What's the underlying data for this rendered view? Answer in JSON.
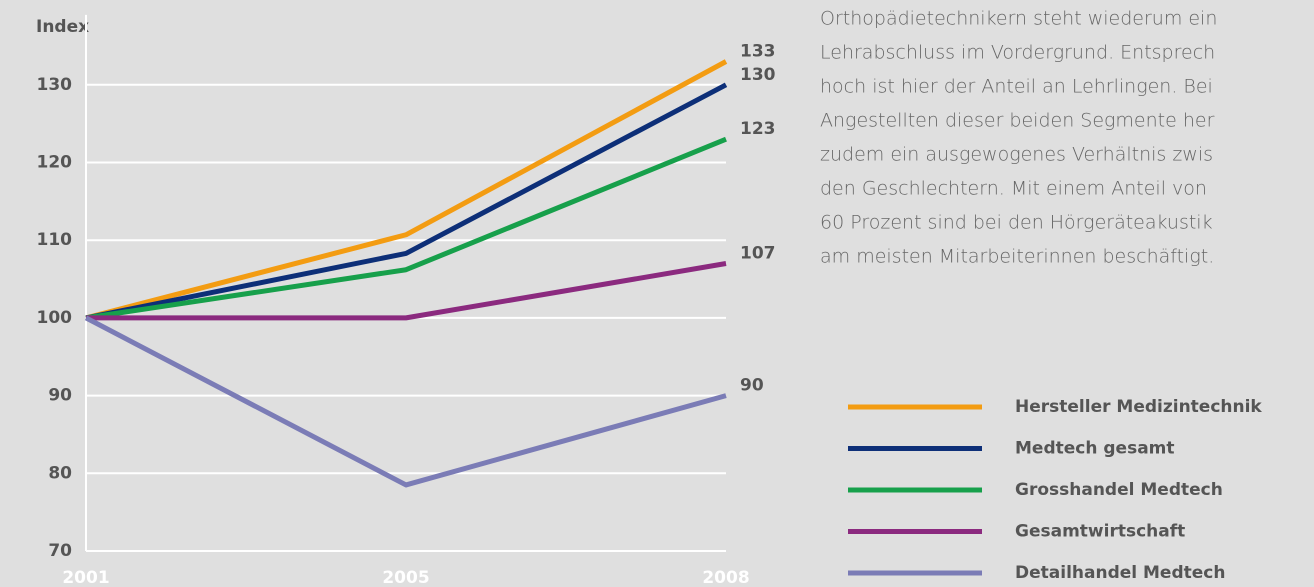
{
  "chart_data": {
    "type": "line",
    "ylabel": "Index",
    "categories": [
      "2001",
      "2005",
      "2008"
    ],
    "series": [
      {
        "name": "Hersteller Medizintechnik",
        "color": "#f39c12",
        "values": [
          100,
          110.7,
          133
        ]
      },
      {
        "name": "Medtech gesamt",
        "color": "#0d2f78",
        "values": [
          100,
          108.3,
          130
        ]
      },
      {
        "name": "Grosshandel Medtech",
        "color": "#17a04b",
        "values": [
          100,
          106.2,
          123
        ]
      },
      {
        "name": "Gesamtwirtschaft",
        "color": "#8b2a7f",
        "values": [
          100,
          100,
          107
        ]
      },
      {
        "name": "Detailhandel Medtech",
        "color": "#7b7cb6",
        "values": [
          100,
          78.5,
          90
        ]
      }
    ],
    "ylim": [
      70,
      139
    ],
    "yticks": [
      70,
      80,
      90,
      100,
      110,
      120,
      130
    ],
    "grid": true
  },
  "text_lines": [
    "Orthopädietechnikern steht wiederum ein",
    "Lehrabschluss im Vordergrund. Entsprech",
    "hoch ist hier der Anteil an Lehrlingen. Bei",
    "Angestellten dieser beiden Segmente her",
    "zudem ein ausgewogenes Verhältnis zwis",
    "den Geschlechtern. Mit einem Anteil von",
    "60 Prozent sind bei den Hörgeräteakustik",
    "am meisten Mitarbeiterinnen beschäftigt."
  ]
}
